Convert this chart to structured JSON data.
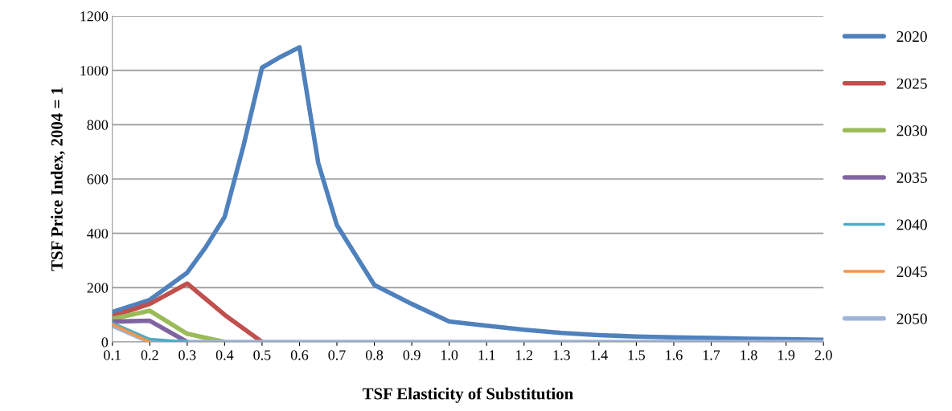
{
  "chart_data": {
    "type": "line",
    "xlabel": "TSF Elasticity of Substitution",
    "ylabel": "TSF Price Index, 2004 = 1",
    "x": [
      0.1,
      0.2,
      0.3,
      0.4,
      0.5,
      0.6,
      0.7,
      0.8,
      0.9,
      1.0,
      1.1,
      1.2,
      1.3,
      1.4,
      1.5,
      1.6,
      1.7,
      1.8,
      1.9,
      2.0
    ],
    "series": [
      {
        "name": "2020",
        "color": "#4f81bd",
        "x": [
          0.1,
          0.2,
          0.3,
          0.35,
          0.4,
          0.45,
          0.5,
          0.55,
          0.6,
          0.65,
          0.7,
          0.8,
          0.9,
          1.0,
          1.1,
          1.2,
          1.3,
          1.4,
          1.5,
          1.6,
          1.7,
          1.8,
          1.9,
          2.0
        ],
        "values": [
          110,
          155,
          255,
          350,
          460,
          720,
          1010,
          1050,
          1085,
          660,
          430,
          210,
          140,
          75,
          60,
          45,
          33,
          25,
          20,
          17,
          15,
          12,
          10,
          8
        ]
      },
      {
        "name": "2025",
        "color": "#c0504d",
        "values": [
          95,
          140,
          215,
          100,
          0,
          null,
          null,
          null,
          null,
          null,
          null,
          null,
          null,
          null,
          null,
          null,
          null,
          null,
          null,
          null
        ]
      },
      {
        "name": "2030",
        "color": "#9bbb59",
        "values": [
          85,
          115,
          30,
          0,
          null,
          null,
          null,
          null,
          null,
          null,
          null,
          null,
          null,
          null,
          null,
          null,
          null,
          null,
          null,
          null
        ]
      },
      {
        "name": "2035",
        "color": "#8064a2",
        "values": [
          75,
          78,
          0,
          null,
          null,
          null,
          null,
          null,
          null,
          null,
          null,
          null,
          null,
          null,
          null,
          null,
          null,
          null,
          null,
          null
        ]
      },
      {
        "name": "2040",
        "color": "#4bacc6",
        "values": [
          70,
          10,
          0,
          null,
          null,
          null,
          null,
          null,
          null,
          null,
          null,
          null,
          null,
          null,
          null,
          null,
          null,
          null,
          null,
          null
        ]
      },
      {
        "name": "2045",
        "color": "#f79646",
        "values": [
          65,
          0,
          null,
          null,
          null,
          null,
          null,
          null,
          null,
          null,
          null,
          null,
          null,
          null,
          null,
          null,
          null,
          null,
          null,
          null
        ]
      },
      {
        "name": "2050",
        "color": "#9eb4d8",
        "values": [
          60,
          0,
          0,
          0,
          0,
          0,
          0,
          0,
          0,
          0,
          0,
          0,
          0,
          0,
          0,
          0,
          0,
          0,
          0,
          0
        ]
      }
    ],
    "xlim": [
      0.1,
      2.0
    ],
    "xticks": [
      {
        "value": 0.1,
        "label": "0.1"
      },
      {
        "value": 0.2,
        "label": "0.2"
      },
      {
        "value": 0.3,
        "label": "0.3"
      },
      {
        "value": 0.4,
        "label": "0.4"
      },
      {
        "value": 0.5,
        "label": "0.5"
      },
      {
        "value": 0.6,
        "label": "0.6"
      },
      {
        "value": 0.7,
        "label": "0.7"
      },
      {
        "value": 0.8,
        "label": "0.8"
      },
      {
        "value": 0.9,
        "label": "0.9"
      },
      {
        "value": 1.0,
        "label": "1.0"
      },
      {
        "value": 1.1,
        "label": "1.1"
      },
      {
        "value": 1.2,
        "label": "1.2"
      },
      {
        "value": 1.3,
        "label": "1.3"
      },
      {
        "value": 1.4,
        "label": "1.4"
      },
      {
        "value": 1.5,
        "label": "1.5"
      },
      {
        "value": 1.6,
        "label": "1.6"
      },
      {
        "value": 1.7,
        "label": "1.7"
      },
      {
        "value": 1.8,
        "label": "1.8"
      },
      {
        "value": 1.9,
        "label": "1.9"
      },
      {
        "value": 2.0,
        "label": "2.0"
      }
    ],
    "ylim": [
      0,
      1200
    ],
    "yticks": [
      0,
      200,
      400,
      600,
      800,
      1000,
      1200
    ],
    "grid": "y",
    "legend": "right",
    "marker": "none",
    "line_style": "solid"
  }
}
